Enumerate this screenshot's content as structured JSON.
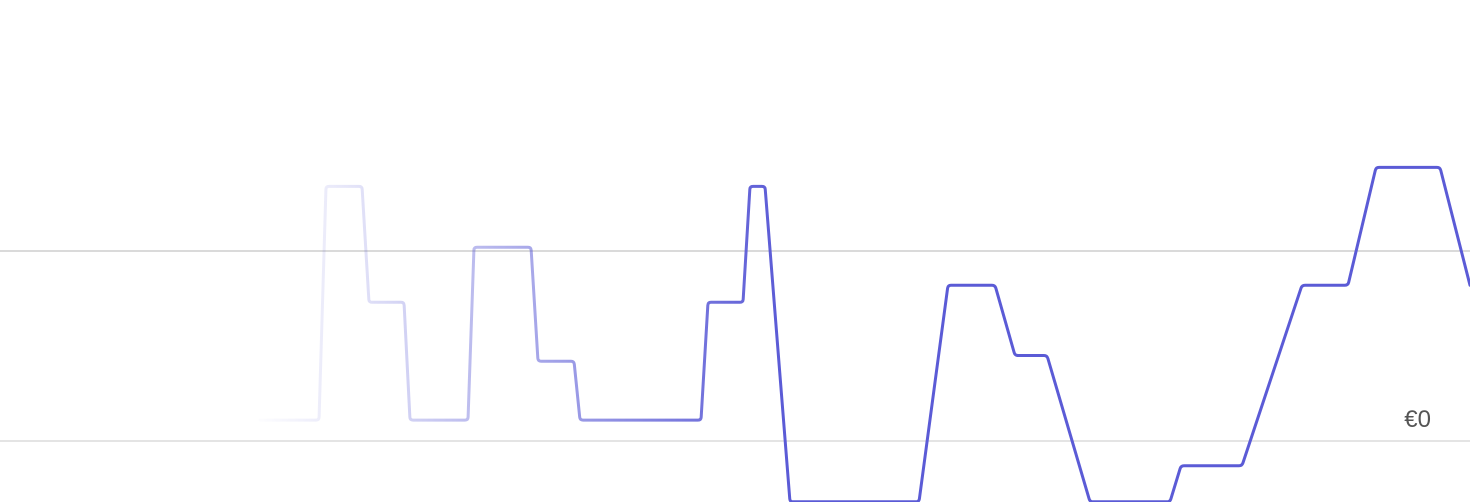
{
  "chart_data": {
    "type": "line",
    "title": "",
    "xlabel": "",
    "ylabel": "",
    "grid": true,
    "legend": "none",
    "y_ticks": [
      {
        "value": 0,
        "label": "€0"
      },
      {
        "value": 1,
        "label": ""
      }
    ],
    "ylim": [
      -0.32,
      1.33
    ],
    "xlim": [
      0,
      1470
    ],
    "series": [
      {
        "color": "#5b5bd6",
        "fade_in": "left",
        "x": [
          260,
          319,
          326,
          362,
          369,
          404,
          410,
          468,
          474,
          531,
          538,
          574,
          580,
          701,
          708,
          743,
          750,
          765,
          790,
          919,
          948,
          995,
          1015,
          1047,
          1090,
          1170,
          1181,
          1242,
          1302,
          1348,
          1376,
          1440,
          1470
        ],
        "y": [
          0.11,
          0.11,
          1.34,
          1.34,
          0.73,
          0.73,
          0.11,
          0.11,
          1.02,
          1.02,
          0.42,
          0.42,
          0.11,
          0.11,
          0.73,
          0.73,
          1.34,
          1.34,
          -0.32,
          -0.32,
          0.82,
          0.82,
          0.45,
          0.45,
          -0.32,
          -0.32,
          -0.13,
          -0.13,
          0.82,
          0.82,
          1.44,
          1.44,
          0.82
        ]
      }
    ]
  }
}
